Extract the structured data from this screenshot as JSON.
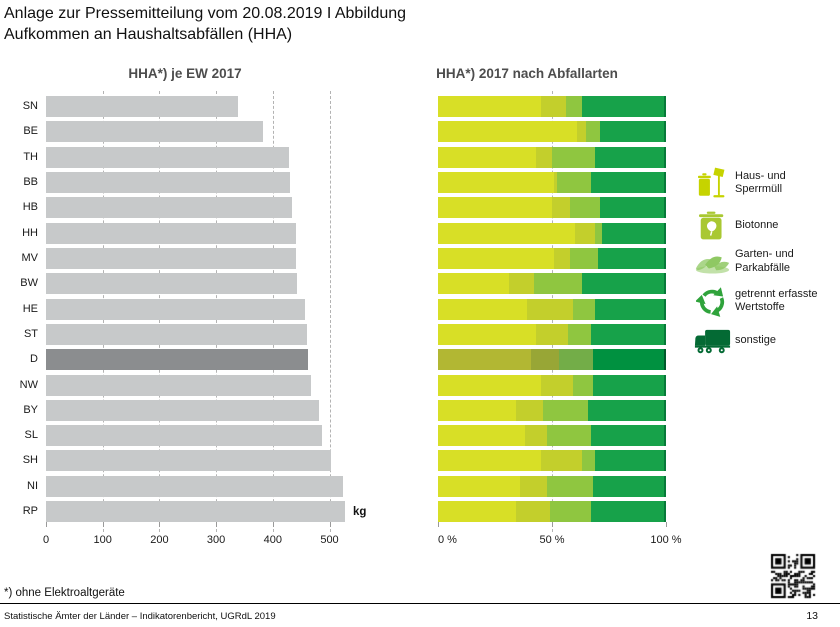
{
  "header": {
    "line1": "Anlage zur Pressemitteilung vom 20.08.2019 I Abbildung",
    "line2": "Aufkommen an Haushaltsabfällen (HHA)"
  },
  "left_chart": {
    "bar_color": "#c7c9ca",
    "highlight_color": "#8b8d8f",
    "unit_label": "kg"
  },
  "right_chart": {
    "segment_colors": [
      "#d8df26",
      "#c3cf2c",
      "#8fc640",
      "#17a24a",
      "#077a39"
    ],
    "highlight_segment_colors": [
      "#b2b733",
      "#98a636",
      "#73ad48",
      "#009140",
      "#00592b"
    ]
  },
  "chart_data": [
    {
      "type": "bar",
      "orientation": "horizontal",
      "title": "HHA*) je EW 2017",
      "categories": [
        "SN",
        "BE",
        "TH",
        "BB",
        "HB",
        "HH",
        "MV",
        "BW",
        "HE",
        "ST",
        "D",
        "NW",
        "BY",
        "SL",
        "SH",
        "NI",
        "RP"
      ],
      "values": [
        339,
        382,
        428,
        431,
        433,
        440,
        441,
        443,
        456,
        460,
        462,
        468,
        481,
        487,
        503,
        524,
        527
      ],
      "xlabel": "kg",
      "xlim": [
        0,
        530
      ],
      "x_ticks": [
        0,
        100,
        200,
        300,
        400,
        500
      ],
      "highlight": "D",
      "grid": "dashed-vertical"
    },
    {
      "type": "bar",
      "subtype": "stacked-horizontal-percent",
      "title": "HHA*) 2017 nach Abfallarten",
      "categories": [
        "SN",
        "BE",
        "TH",
        "BB",
        "HB",
        "HH",
        "MV",
        "BW",
        "HE",
        "ST",
        "D",
        "NW",
        "BY",
        "SL",
        "SH",
        "NI",
        "RP"
      ],
      "series": [
        {
          "name": "Haus- und Sperrmüll",
          "values": [
            45,
            61,
            43,
            51,
            50,
            60,
            51,
            31,
            39,
            43,
            41,
            45,
            34,
            38,
            45,
            36,
            34
          ]
        },
        {
          "name": "Biotonne",
          "values": [
            11,
            4,
            7,
            1,
            8,
            9,
            7,
            11,
            20,
            14,
            12,
            14,
            12,
            10,
            18,
            12,
            15
          ]
        },
        {
          "name": "Garten- und Parkabfälle",
          "values": [
            7,
            6,
            19,
            15,
            13,
            3,
            12,
            21,
            10,
            10,
            15,
            9,
            20,
            19,
            6,
            20,
            18
          ]
        },
        {
          "name": "getrennt erfasste Wertstoffe",
          "values": [
            36,
            28,
            30,
            32,
            28,
            27,
            29,
            36,
            30,
            32,
            31,
            31,
            33,
            32,
            30,
            31,
            32
          ]
        },
        {
          "name": "sonstige",
          "values": [
            1,
            1,
            1,
            1,
            1,
            1,
            1,
            1,
            1,
            1,
            1,
            1,
            1,
            1,
            1,
            1,
            1
          ]
        }
      ],
      "xlim": [
        0,
        100
      ],
      "x_ticks": [
        "0 %",
        "50 %",
        "100 %"
      ],
      "highlight": "D",
      "grid": "dashed-vertical-50"
    }
  ],
  "legend": {
    "items": [
      {
        "icon": "waste-bin-and-lamp",
        "label": "Haus- und\nSperrmüll",
        "color": "#c6d300"
      },
      {
        "icon": "bio-bin",
        "label": "Biotonne",
        "color": "#a9c832"
      },
      {
        "icon": "leaves",
        "label": "Garten- und\nParkabfälle",
        "color": "#8fc863"
      },
      {
        "icon": "recycle",
        "label": "getrennt erfasste\nWertstoffe",
        "color": "#2fa33b"
      },
      {
        "icon": "garbage-truck",
        "label": "sonstige",
        "color": "#046a34"
      }
    ]
  },
  "footer": {
    "footnote": "*) ohne Elektroaltgeräte",
    "credit": "Statistische Ämter der Länder – Indikatorenbericht, UGRdL 2019",
    "page": "13"
  }
}
